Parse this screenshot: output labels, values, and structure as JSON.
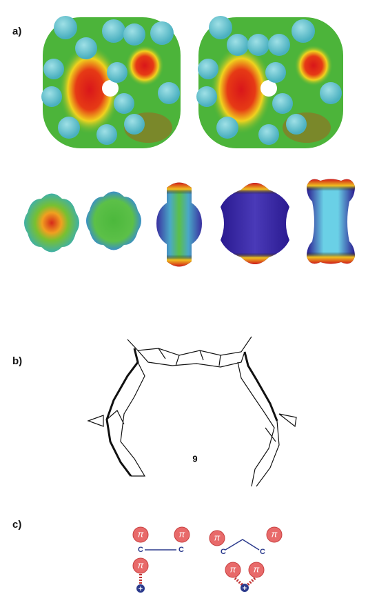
{
  "panel_a": {
    "label": "a)"
  },
  "panel_b": {
    "label": "b)",
    "compound": "9"
  },
  "panel_c": {
    "label": "c)",
    "left": {
      "pi": [
        "π",
        "π",
        "π"
      ],
      "carbons": [
        "C",
        "C"
      ],
      "charge": "+"
    },
    "right": {
      "pi": [
        "π",
        "π",
        "π",
        "π"
      ],
      "carbons": [
        "C",
        "C"
      ],
      "charge": "+"
    }
  }
}
